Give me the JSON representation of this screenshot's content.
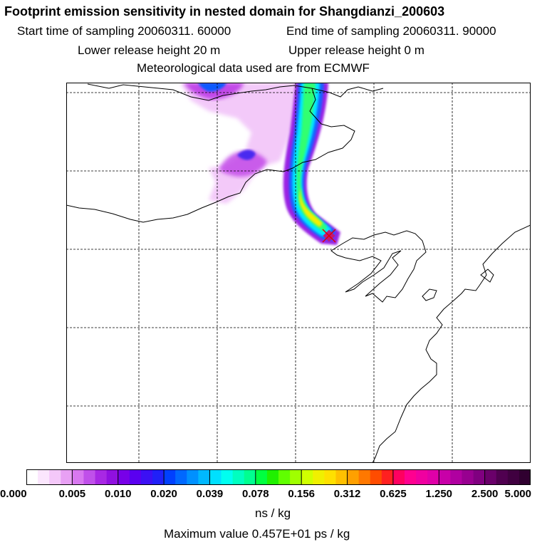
{
  "header": {
    "title": "Footprint emission sensitivity in nested domain for Shangdianzi_200603",
    "start_time": "Start time of sampling 20060311. 60000",
    "end_time": "End time of sampling 20060311. 90000",
    "lower_height": "Lower release height   20 m",
    "upper_height": "Upper release height    0 m",
    "met_data": "Meteorological data used are from ECMWF"
  },
  "map": {
    "gridlines": "dashed",
    "receptor_marker": "red-cross",
    "plume_colors": [
      "#f0c8f8",
      "#b030e0",
      "#6000f0",
      "#0060ff",
      "#00e8ff",
      "#00ff60",
      "#c0ff00",
      "#ffd800"
    ]
  },
  "colorbar": {
    "unit": "ns / kg",
    "tick_labels": [
      "0.000",
      "0.005",
      "0.010",
      "0.020",
      "0.039",
      "0.078",
      "0.156",
      "0.312",
      "0.625",
      "1.250",
      "2.500",
      "5.000"
    ],
    "colors": [
      "#ffffff",
      "#fbe6fd",
      "#f4c8f9",
      "#e8a0f4",
      "#d878f0",
      "#c050ea",
      "#a828e4",
      "#9010e0",
      "#7800e8",
      "#5a00f0",
      "#3c10f4",
      "#2020f8",
      "#0040ff",
      "#0068ff",
      "#0090ff",
      "#00b8ff",
      "#00e0ff",
      "#00fff0",
      "#00ffc0",
      "#00ff90",
      "#00ff40",
      "#20f000",
      "#60ff00",
      "#a0ff00",
      "#d0ff00",
      "#f0f000",
      "#ffe000",
      "#ffc000",
      "#ffa000",
      "#ff7800",
      "#ff4c00",
      "#ff2020",
      "#ff0060",
      "#ff0090",
      "#f000a0",
      "#e000a8",
      "#c800a8",
      "#b000a0",
      "#980090",
      "#800080",
      "#6a006a",
      "#500050",
      "#400040",
      "#300030"
    ]
  },
  "footer": {
    "max_value": "Maximum value  0.457E+01 ps / kg"
  }
}
